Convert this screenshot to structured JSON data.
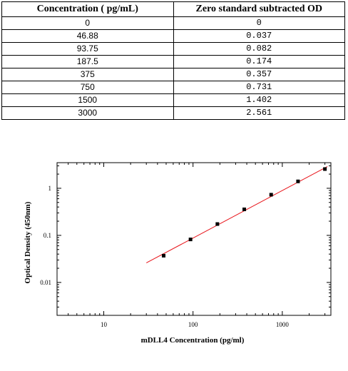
{
  "table": {
    "headers": [
      "Concentration ( pg/mL)",
      "Zero standard subtracted OD"
    ],
    "rows": [
      [
        "0",
        "0"
      ],
      [
        "46.88",
        "0.037"
      ],
      [
        "93.75",
        "0.082"
      ],
      [
        "187.5",
        "0.174"
      ],
      [
        "375",
        "0.357"
      ],
      [
        "750",
        "0.731"
      ],
      [
        "1500",
        "1.402"
      ],
      [
        "3000",
        "2.561"
      ]
    ]
  },
  "chart_data": {
    "type": "scatter",
    "xlabel": "mDLL4 Concentration (pg/ml)",
    "ylabel": "Optical Density (450nm)",
    "xscale": "log",
    "yscale": "log",
    "xlim": [
      3,
      3500
    ],
    "ylim": [
      0.002,
      3.5
    ],
    "x_ticks": [
      10,
      100,
      1000
    ],
    "x_tick_labels": [
      "10",
      "100",
      "1000"
    ],
    "y_ticks": [
      0.01,
      0.1,
      1
    ],
    "y_tick_labels": [
      "0.01",
      "0.1",
      "1"
    ],
    "series": [
      {
        "x": [
          46.88,
          93.75,
          187.5,
          375,
          750,
          1500,
          3000
        ],
        "y": [
          0.037,
          0.082,
          0.174,
          0.357,
          0.731,
          1.402,
          2.561
        ],
        "marker": "square",
        "color": "#000000"
      }
    ],
    "fit_line": {
      "x": [
        30,
        3200
      ],
      "y": [
        0.026,
        2.9
      ],
      "color": "#e8141a"
    },
    "grid": false
  }
}
